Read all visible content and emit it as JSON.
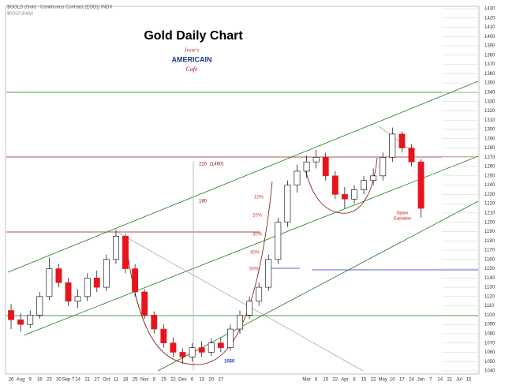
{
  "chart_data": {
    "type": "candlestick",
    "symbol_line": "$GOLD (Gold - Continuous Contract (EOD)) INDX",
    "period_line": "$GOLD (Daily)",
    "title": "Gold Daily Chart",
    "logo": {
      "top": "Jesse's",
      "middle": "AMERICAIN",
      "bottom": "Cafe"
    },
    "annotations": [
      "220",
      "(1490)",
      "180",
      "10%",
      "20%",
      "30%",
      "40%",
      "50%",
      "1050",
      "Option",
      "Expiration"
    ],
    "categories": [
      "26",
      "Aug",
      "9",
      "16",
      "23",
      "30",
      "Sep 7",
      "14",
      "21",
      "27",
      "Oct",
      "11",
      "18",
      "25",
      "Nov",
      "8",
      "15",
      "22",
      "Dec",
      "6",
      "13",
      "20",
      "27",
      null,
      null,
      null,
      null,
      null,
      null,
      null,
      null,
      "Mar",
      "8",
      "15",
      "22",
      "Apr",
      "8",
      "15",
      "22",
      "May",
      "10",
      "17",
      "24",
      "Jun",
      "7",
      "14",
      "21",
      "Jul",
      "12"
    ],
    "open": [
      1105,
      1095,
      1090,
      1100,
      1120,
      1150,
      1135,
      1115,
      1120,
      1140,
      1130,
      1160,
      1185,
      1150,
      1125,
      1100,
      1085,
      1070,
      1060,
      1055,
      1065,
      1060,
      1070,
      1065,
      1085,
      1100,
      1115,
      1130,
      1160,
      1200,
      1240,
      1255,
      1265,
      1270,
      1250,
      1230,
      1225,
      1235,
      1245,
      1250,
      1270,
      1295,
      1280,
      1265,
      null,
      null,
      null,
      null,
      null
    ],
    "high": [
      1112,
      1102,
      1105,
      1125,
      1162,
      1155,
      1140,
      1128,
      1145,
      1148,
      1165,
      1192,
      1188,
      1155,
      1128,
      1104,
      1090,
      1076,
      1064,
      1070,
      1072,
      1075,
      1076,
      1090,
      1105,
      1120,
      1135,
      1165,
      1205,
      1245,
      1262,
      1272,
      1278,
      1275,
      1255,
      1238,
      1240,
      1250,
      1258,
      1275,
      1302,
      1298,
      1284,
      1268,
      null,
      null,
      null,
      null,
      null
    ],
    "low": [
      1085,
      1082,
      1086,
      1096,
      1116,
      1130,
      1110,
      1108,
      1115,
      1125,
      1126,
      1155,
      1145,
      1120,
      1096,
      1080,
      1065,
      1055,
      1048,
      1050,
      1055,
      1056,
      1060,
      1062,
      1080,
      1096,
      1110,
      1126,
      1155,
      1195,
      1232,
      1248,
      1258,
      1245,
      1225,
      1215,
      1220,
      1230,
      1240,
      1245,
      1265,
      1275,
      1260,
      1205,
      null,
      null,
      null,
      null,
      null
    ],
    "close": [
      1095,
      1090,
      1100,
      1120,
      1150,
      1135,
      1115,
      1120,
      1140,
      1130,
      1160,
      1185,
      1150,
      1125,
      1100,
      1085,
      1070,
      1060,
      1055,
      1065,
      1060,
      1070,
      1065,
      1085,
      1100,
      1115,
      1130,
      1160,
      1200,
      1240,
      1255,
      1265,
      1270,
      1250,
      1230,
      1225,
      1235,
      1245,
      1250,
      1270,
      1295,
      1280,
      1265,
      1215,
      null,
      null,
      null,
      null,
      null
    ],
    "up_color": "#ffffff",
    "down_color": "#e8141c",
    "ylim": [
      1040,
      1430
    ],
    "yticks": [
      1040,
      1050,
      1060,
      1070,
      1080,
      1090,
      1100,
      1110,
      1120,
      1130,
      1140,
      1150,
      1160,
      1170,
      1180,
      1190,
      1200,
      1210,
      1220,
      1230,
      1240,
      1250,
      1260,
      1270,
      1280,
      1290,
      1300,
      1310,
      1320,
      1330,
      1340,
      1350,
      1360,
      1370,
      1380,
      1390,
      1400,
      1410,
      1420,
      1430
    ],
    "grid": true
  }
}
